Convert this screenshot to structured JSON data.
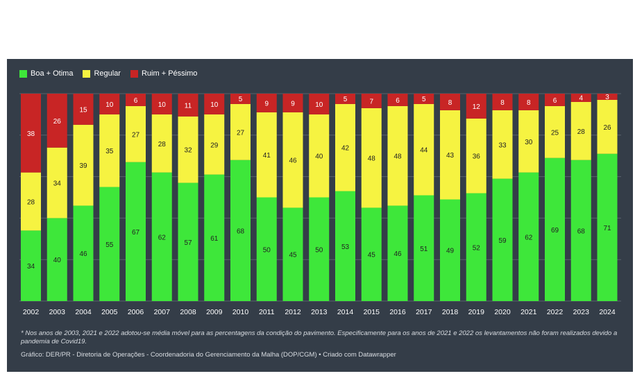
{
  "chart_data": {
    "type": "bar",
    "stacked": true,
    "normalized_to": 100,
    "categories": [
      "2002",
      "2003",
      "2004",
      "2005",
      "2006",
      "2007",
      "2008",
      "2009",
      "2010",
      "2011",
      "2012",
      "2013",
      "2014",
      "2015",
      "2016",
      "2017",
      "2018",
      "2019",
      "2020",
      "2021",
      "2022",
      "2023",
      "2024"
    ],
    "series": [
      {
        "name": "Boa + Otima",
        "color": "#3ee73a",
        "values": [
          34,
          40,
          46,
          55,
          67,
          62,
          57,
          61,
          68,
          50,
          45,
          50,
          53,
          45,
          46,
          51,
          49,
          52,
          59,
          62,
          69,
          68,
          71
        ]
      },
      {
        "name": "Regular",
        "color": "#f6f341",
        "values": [
          28,
          34,
          39,
          35,
          27,
          28,
          32,
          29,
          27,
          41,
          46,
          40,
          42,
          48,
          48,
          44,
          43,
          36,
          33,
          30,
          25,
          28,
          26
        ]
      },
      {
        "name": "Ruim + Péssimo",
        "color": "#c82525",
        "values": [
          38,
          26,
          15,
          10,
          6,
          10,
          11,
          10,
          5,
          9,
          9,
          10,
          5,
          7,
          6,
          5,
          8,
          12,
          8,
          8,
          6,
          4,
          3
        ]
      }
    ],
    "legend_position": "top-left",
    "grid": "horizontal",
    "footnote": "* Nos anos de 2003, 2021 e 2022 adotou-se média móvel para as percentagens da condição do pavimento. Especificamente para os anos de 2021 e 2022 os levantamentos não foram realizados devido a pandemia de Covid19.",
    "source": "Gráfico: DER/PR - Diretoria de Operações - Coordenadoria do Gerenciamento da Malha (DOP/CGM) • Criado com Datawrapper"
  },
  "colors": {
    "background": "#343d48",
    "gridline": "#59626d",
    "label_on_dark": "#ffffff",
    "label_on_light": "#222222"
  }
}
